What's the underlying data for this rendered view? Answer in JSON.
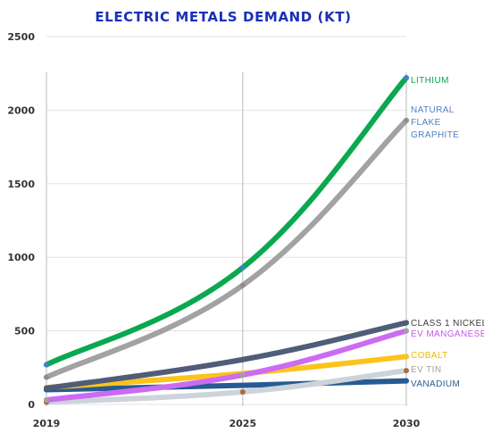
{
  "chart_data": {
    "type": "line",
    "title": "ELECTRIC METALS DEMAND (KT)",
    "xlabel": "",
    "ylabel": "",
    "x": [
      2019,
      2025,
      2030
    ],
    "x_ticks": [
      "2019",
      "2025",
      "2030"
    ],
    "ylim": [
      0,
      2500
    ],
    "y_ticks": [
      "0",
      "500",
      "1000",
      "1500",
      "2000",
      "2500"
    ],
    "grid": true,
    "legend": "inline-right",
    "series": [
      {
        "name": "LITHIUM",
        "label_lines": [
          "LITHIUM"
        ],
        "color": "#0aa84f",
        "label_color": "#0aa84f",
        "marker_color": "#3b83c8",
        "values": [
          270,
          930,
          2220
        ]
      },
      {
        "name": "NATURAL FLAKE GRAPHITE",
        "label_lines": [
          "NATURAL",
          "FLAKE",
          "GRAPHITE"
        ],
        "color": "#a2a2a2",
        "label_color": "#4d7fc4",
        "marker_color": "#8e8e8e",
        "values": [
          185,
          810,
          1930
        ]
      },
      {
        "name": "CLASS 1 NICKEL",
        "label_lines": [
          "CLASS 1 NICKEL"
        ],
        "color": "#4f5d78",
        "label_color": "#3b3b3b",
        "marker_color": "#4f5d78",
        "values": [
          110,
          305,
          555
        ]
      },
      {
        "name": "EV MANGANESE",
        "label_lines": [
          "EV MANGANESE"
        ],
        "color": "#cc6bf3",
        "label_color": "#c557ea",
        "marker_color": "#a0a0a0",
        "values": [
          30,
          200,
          500
        ]
      },
      {
        "name": "COBALT",
        "label_lines": [
          "COBALT"
        ],
        "color": "#fcc31c",
        "label_color": "#f0b700",
        "marker_color": "#fcc31c",
        "values": [
          115,
          210,
          325
        ]
      },
      {
        "name": "EV TIN",
        "label_lines": [
          "EV TIN"
        ],
        "color": "#cdd3da",
        "label_color": "#a2a2a2",
        "marker_color": "#b06a3a",
        "values": [
          15,
          85,
          230
        ]
      },
      {
        "name": "VANADIUM",
        "label_lines": [
          "VANADIUM"
        ],
        "color": "#275b93",
        "label_color": "#275b93",
        "marker_color": "#275b93",
        "values": [
          100,
          130,
          160
        ]
      }
    ]
  }
}
